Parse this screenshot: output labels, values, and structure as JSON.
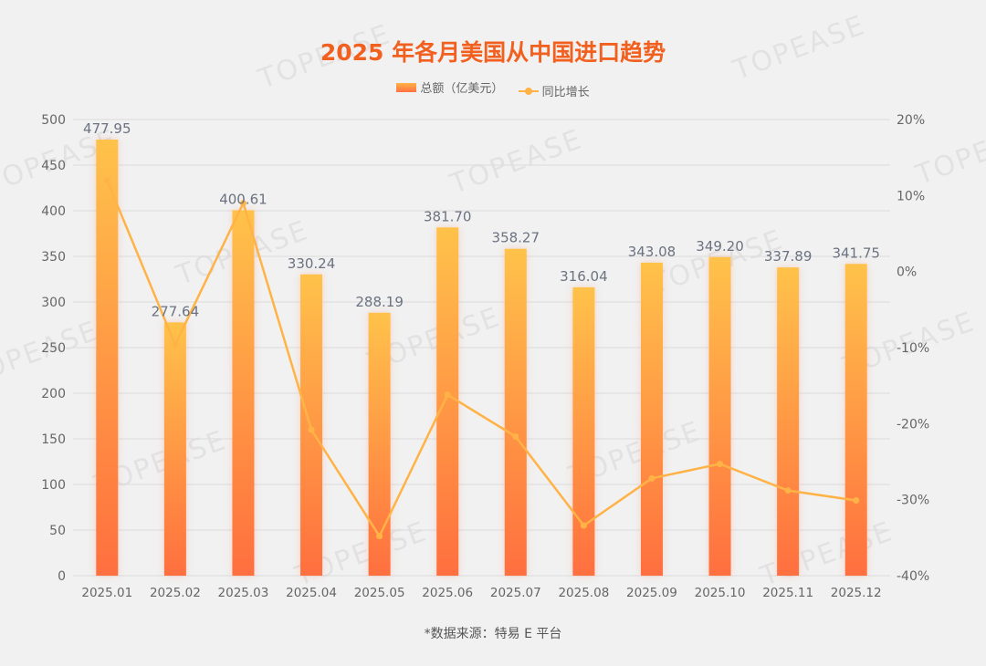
{
  "watermark": "TOPEASE",
  "source": "*数据来源：特易 E 平台",
  "colors": {
    "title": "#f2601f",
    "bar_top": "#ffc24a",
    "bar_bottom": "#ff6f3f",
    "line": "#ffb347",
    "grid": "#dcdcdc",
    "axis_text": "#666666"
  },
  "chart_data": {
    "type": "bar+line",
    "title": "2025 年各月美国从中国进口趋势",
    "categories": [
      "2025.01",
      "2025.02",
      "2025.03",
      "2025.04",
      "2025.05",
      "2025.06",
      "2025.07",
      "2025.08",
      "2025.09",
      "2025.10",
      "2025.11",
      "2025.12"
    ],
    "series": [
      {
        "name": "总额（亿美元）",
        "type": "bar",
        "axis": "left",
        "values": [
          477.95,
          277.64,
          400.61,
          330.24,
          288.19,
          381.7,
          358.27,
          316.04,
          343.08,
          349.2,
          337.89,
          341.75
        ],
        "labels": [
          "477.95",
          "277.64",
          "400.61",
          "330.24",
          "288.19",
          "381.70",
          "358.27",
          "316.04",
          "343.08",
          "349.20",
          "337.89",
          "341.75"
        ]
      },
      {
        "name": "同比增长",
        "type": "line",
        "axis": "right",
        "values": [
          12.0,
          -9.6,
          9.0,
          -20.8,
          -34.8,
          -16.2,
          -21.7,
          -33.4,
          -27.2,
          -25.3,
          -28.8,
          -30.1
        ]
      }
    ],
    "y_left": {
      "min": 0,
      "max": 500,
      "ticks": [
        "0",
        "50",
        "100",
        "150",
        "200",
        "250",
        "300",
        "350",
        "400",
        "450",
        "500"
      ]
    },
    "y_right": {
      "min": -40,
      "max": 20,
      "ticks": [
        "-40%",
        "-30%",
        "-20%",
        "-10%",
        "0%",
        "10%",
        "20%"
      ]
    },
    "legend": "top-center",
    "grid": true
  }
}
